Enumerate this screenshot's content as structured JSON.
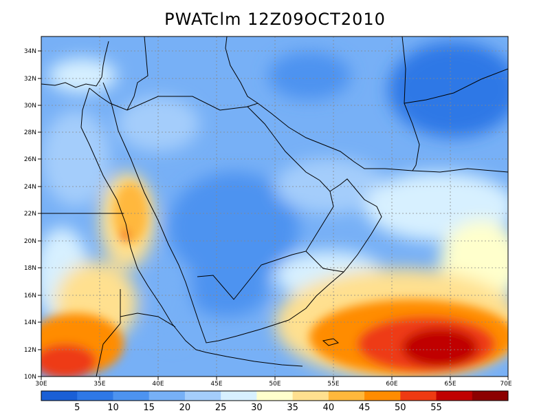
{
  "title": "PWATclm  12Z09OCT2010",
  "map": {
    "lat_labels": [
      "34N",
      "32N",
      "30N",
      "28N",
      "26N",
      "24N",
      "22N",
      "20N",
      "18N",
      "16N",
      "14N",
      "12N",
      "10N"
    ],
    "lon_labels": [
      "30E",
      "35E",
      "40E",
      "45E",
      "50E",
      "55E",
      "60E",
      "65E",
      "70E"
    ]
  },
  "colorbar": {
    "colors": [
      "#1a5fd6",
      "#2f78e6",
      "#4d93f0",
      "#77b0f6",
      "#a4cdfb",
      "#d7f0ff",
      "#ffffcc",
      "#ffe08f",
      "#ffb83c",
      "#ff8c00",
      "#ee3a12",
      "#c00000",
      "#8c0000"
    ],
    "labels": [
      "5",
      "10",
      "15",
      "20",
      "25",
      "30",
      "35",
      "40",
      "45",
      "50",
      "55"
    ]
  }
}
